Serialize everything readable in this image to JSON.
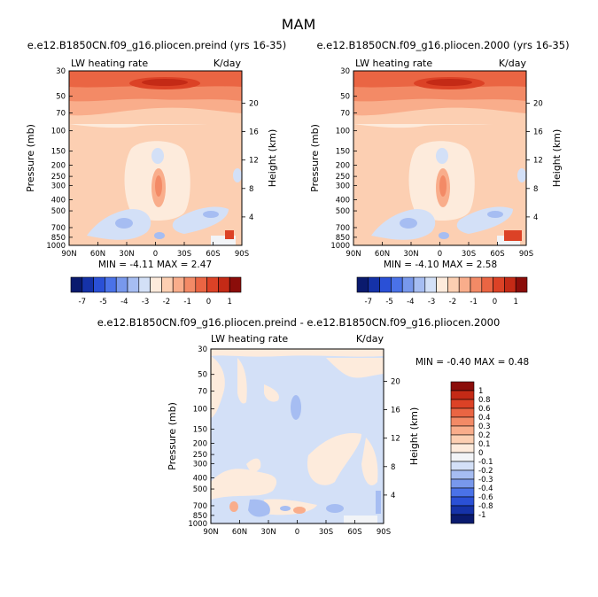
{
  "main_title": "MAM",
  "panels": [
    {
      "id": "preind",
      "title": "e.e12.B1850CN.f09_g16.pliocen.preind (yrs 16-35)",
      "variable": "LW heating rate",
      "units": "K/day",
      "stats_text": "MIN =  -4.11   MAX =    2.47"
    },
    {
      "id": "y2000",
      "title": "e.e12.B1850CN.f09_g16.pliocen.2000 (yrs 16-35)",
      "variable": "LW heating rate",
      "units": "K/day",
      "stats_text": "MIN =  -4.10   MAX =    2.58"
    },
    {
      "id": "diff",
      "title": "e.e12.B1850CN.f09_g16.pliocen.preind - e.e12.B1850CN.f09_g16.pliocen.2000",
      "variable": "LW heating rate",
      "units": "K/day",
      "stats_text": "MIN = -0.40   MAX =    0.48"
    }
  ],
  "axes": {
    "ylabel": "Pressure (mb)",
    "y2label": "Height (km)",
    "pressure_ticks": [
      "30",
      "50",
      "70",
      "100",
      "150",
      "200",
      "250",
      "300",
      "400",
      "500",
      "700",
      "850",
      "1000"
    ],
    "height_ticks": [
      "20",
      "16",
      "12",
      "8",
      "4"
    ],
    "lat_ticks": [
      "90N",
      "60N",
      "30N",
      "0",
      "30S",
      "60S",
      "90S"
    ]
  },
  "colorbar_top": {
    "labels": [
      "-7",
      "-5",
      "-4",
      "-3",
      "-2",
      "-1",
      "0",
      "1"
    ],
    "colors": [
      "#0a1a6e",
      "#1532a8",
      "#2a50d6",
      "#4a72e8",
      "#7898ec",
      "#a6bdf2",
      "#d3e0f7",
      "#fdebdc",
      "#fccfb2",
      "#f9ad8b",
      "#f38a66",
      "#ea6543",
      "#dc4226",
      "#c42a16",
      "#8b0d0a"
    ]
  },
  "colorbar_diff": {
    "labels": [
      "1",
      "0.8",
      "0.6",
      "0.4",
      "0.3",
      "0.2",
      "0.1",
      "0",
      "-0.1",
      "-0.2",
      "-0.3",
      "-0.4",
      "-0.6",
      "-0.8",
      "-1"
    ],
    "colors": [
      "#8b0d0a",
      "#c42a16",
      "#dc4226",
      "#ea6543",
      "#f38a66",
      "#f9ad8b",
      "#fccfb2",
      "#fdebdc",
      "#f2f4f7",
      "#d3e0f7",
      "#a6bdf2",
      "#7898ec",
      "#4a72e8",
      "#2a50d6",
      "#1532a8",
      "#0a1a6e"
    ]
  },
  "chart_data": [
    {
      "type": "heatmap",
      "title": "e.e12.B1850CN.f09_g16.pliocen.preind (yrs 16-35)",
      "subtitle": "LW heating rate",
      "units": "K/day",
      "x_ticks": [
        "90N",
        "60N",
        "30N",
        "0",
        "30S",
        "60S",
        "90S"
      ],
      "y_ticks": [
        "30",
        "50",
        "70",
        "100",
        "150",
        "200",
        "250",
        "300",
        "400",
        "500",
        "700",
        "850",
        "1000"
      ],
      "y2_ticks": [
        "20",
        "16",
        "12",
        "8",
        "4"
      ],
      "min": -4.11,
      "max": 2.47
    },
    {
      "type": "heatmap",
      "title": "e.e12.B1850CN.f09_g16.pliocen.2000 (yrs 16-35)",
      "subtitle": "LW heating rate",
      "units": "K/day",
      "x_ticks": [
        "90N",
        "60N",
        "30N",
        "0",
        "30S",
        "60S",
        "90S"
      ],
      "y_ticks": [
        "30",
        "50",
        "70",
        "100",
        "150",
        "200",
        "250",
        "300",
        "400",
        "500",
        "700",
        "850",
        "1000"
      ],
      "y2_ticks": [
        "20",
        "16",
        "12",
        "8",
        "4"
      ],
      "min": -4.1,
      "max": 2.58
    },
    {
      "type": "heatmap",
      "title": "e.e12.B1850CN.f09_g16.pliocen.preind - e.e12.B1850CN.f09_g16.pliocen.2000",
      "subtitle": "LW heating rate",
      "units": "K/day",
      "x_ticks": [
        "90N",
        "60N",
        "30N",
        "0",
        "30S",
        "60S",
        "90S"
      ],
      "y_ticks": [
        "30",
        "50",
        "70",
        "100",
        "150",
        "200",
        "250",
        "300",
        "400",
        "500",
        "700",
        "850",
        "1000"
      ],
      "y2_ticks": [
        "20",
        "16",
        "12",
        "8",
        "4"
      ],
      "min": -0.4,
      "max": 0.48
    }
  ]
}
